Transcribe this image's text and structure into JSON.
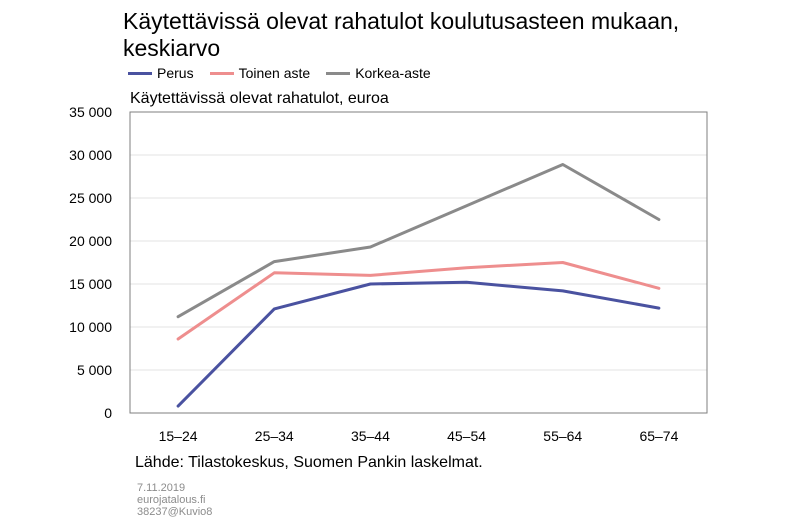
{
  "header": {
    "title": "Käytettävissä olevat rahatulot koulutusasteen mukaan, keskiarvo"
  },
  "chart_subtitle": "Käytettävissä olevat rahatulot, euroa",
  "source": "Lähde: Tilastokeskus, Suomen Pankin laskelmat.",
  "footer": {
    "date": "7.11.2019",
    "site": "eurojatalous.fi",
    "code": "38237@Kuvio8"
  },
  "chart_data": {
    "type": "line",
    "title": "Käytettävissä olevat rahatulot koulutusasteen mukaan, keskiarvo",
    "ylabel": "Käytettävissä olevat rahatulot, euroa",
    "xlabel": "",
    "categories": [
      "15–24",
      "25–34",
      "35–44",
      "45–54",
      "55–64",
      "65–74"
    ],
    "ylim": [
      0,
      35000
    ],
    "yticks": [
      0,
      5000,
      10000,
      15000,
      20000,
      25000,
      30000,
      35000
    ],
    "ytick_labels": [
      "0",
      "5 000",
      "10 000",
      "15 000",
      "20 000",
      "25 000",
      "30 000",
      "35 000"
    ],
    "grid": true,
    "legend_position": "top-left",
    "series": [
      {
        "name": "Perus",
        "color": "#4a52a0",
        "values": [
          800,
          12100,
          15000,
          15200,
          14200,
          12200
        ]
      },
      {
        "name": "Toinen aste",
        "color": "#ee8e8e",
        "values": [
          8600,
          16300,
          16000,
          16900,
          17500,
          14500
        ]
      },
      {
        "name": "Korkea-aste",
        "color": "#8a8a8a",
        "values": [
          11200,
          17600,
          19300,
          24100,
          28900,
          22500
        ]
      }
    ]
  }
}
